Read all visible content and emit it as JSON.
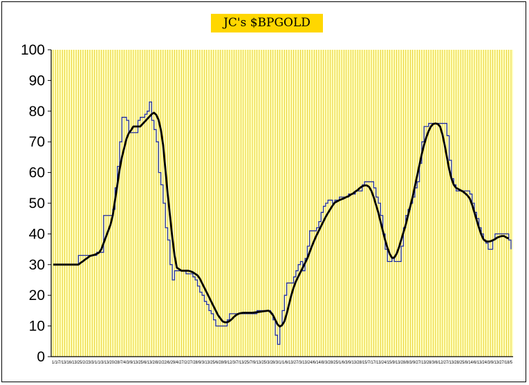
{
  "chart_data": {
    "type": "line",
    "title": "JC's $BPGOLD",
    "xlabel": "",
    "ylabel": "",
    "ylim": [
      0,
      100
    ],
    "yticks": [
      0,
      10,
      20,
      30,
      40,
      50,
      60,
      70,
      80,
      90,
      100
    ],
    "grid": true,
    "legend": "none",
    "colors": {
      "background": "#ffffc0",
      "grid": "#e0c000",
      "series_raw": "#1f2a9e",
      "series_smooth": "#000000",
      "title_bg": "#ffd700"
    },
    "x_tick_labels": [
      "1/1/7/13/16/13/25/2/23/3/1/1/3/13/20/28/7/4/3/9/13/25/6/13/2/8/2/22/6/29/4/27/2/27/28/9/3/13/25/6/28/9/12/3/7/13/25/7/9/13/25/3/28/3/1/1/6/13/27/3/13/24/6/14/8/3/28/25/1/6/3/9/13/28/15/7/17/13/24/15/9/13/28/8/3/9/27/13/28/3/6/12/27/13/28/25/8/14/6/13/24/3/9/13/27/18/5"
    ],
    "series": [
      {
        "values": [
          30,
          30,
          30,
          30,
          30,
          30,
          30,
          30,
          30,
          30,
          30,
          33,
          33,
          33,
          33,
          33,
          33,
          33,
          33,
          34,
          34,
          34,
          46,
          46,
          46,
          46,
          48,
          55,
          62,
          70,
          78,
          78,
          77,
          73,
          73,
          73,
          73,
          77,
          78,
          78,
          79,
          80,
          83,
          77,
          74,
          70,
          60,
          56,
          50,
          42,
          38,
          30,
          25,
          28,
          28,
          28,
          28,
          28,
          27,
          27,
          27,
          26,
          25,
          23,
          21,
          20,
          18,
          17,
          15,
          14,
          12,
          10,
          10,
          10,
          10,
          10,
          12,
          14,
          14,
          14,
          14,
          14,
          14,
          14,
          14,
          14,
          14,
          14,
          14,
          15,
          15,
          15,
          15,
          15,
          15,
          14,
          12,
          7,
          4,
          10,
          15,
          20,
          24,
          24,
          24,
          26,
          28,
          30,
          31,
          28,
          32,
          36,
          41,
          41,
          41,
          42,
          44,
          47,
          49,
          50,
          51,
          51,
          50,
          51,
          51,
          52,
          52,
          52,
          52,
          53,
          53,
          53,
          54,
          54,
          54,
          56,
          57,
          57,
          57,
          57,
          55,
          52,
          50,
          46,
          40,
          35,
          31,
          31,
          32,
          31,
          31,
          31,
          36,
          42,
          46,
          48,
          50,
          52,
          55,
          57,
          63,
          70,
          75,
          75,
          76,
          76,
          76,
          76,
          76,
          76,
          76,
          76,
          72,
          64,
          58,
          56,
          54,
          54,
          54,
          54,
          54,
          54,
          53,
          50,
          47,
          45,
          42,
          40,
          38,
          37,
          35,
          35,
          38,
          40,
          40,
          40,
          40,
          40,
          40,
          38,
          35
        ]
      },
      {
        "values": [
          30,
          30,
          30,
          30,
          30,
          30,
          30,
          30,
          30,
          30,
          30,
          30,
          30.6,
          31.1,
          31.7,
          32.2,
          32.8,
          33,
          33.2,
          33.5,
          33.9,
          35,
          37,
          39,
          41,
          43,
          46,
          51,
          56,
          61,
          65,
          68,
          71,
          72.8,
          73.8,
          75,
          75,
          75,
          75,
          75.8,
          76.6,
          77.4,
          78.2,
          79,
          79.5,
          78.8,
          77.2,
          74,
          69,
          61,
          53,
          46,
          39,
          33,
          29,
          28.5,
          28,
          28,
          28,
          28,
          27.8,
          27.5,
          27,
          26.5,
          25.5,
          24,
          22.5,
          21,
          19.5,
          18,
          16.5,
          15,
          13.5,
          12.5,
          11.5,
          11.2,
          11.2,
          11.6,
          12.2,
          13,
          13.6,
          14,
          14.2,
          14.3,
          14.3,
          14.3,
          14.3,
          14.3,
          14.4,
          14.5,
          14.6,
          14.7,
          14.8,
          14.9,
          15,
          14.5,
          13.5,
          12,
          10.5,
          9.8,
          10.3,
          11.5,
          14,
          17,
          20,
          22.5,
          24.5,
          26,
          27.5,
          29,
          30.5,
          32,
          34,
          36,
          37.8,
          39.5,
          41,
          42.5,
          44,
          45.5,
          46.8,
          48,
          49.2,
          50.2,
          50.6,
          51,
          51.3,
          51.6,
          52,
          52.3,
          52.8,
          53.2,
          53.8,
          54.3,
          55,
          55.5,
          55.8,
          55.8,
          55.3,
          54,
          52,
          49.5,
          47,
          44,
          41,
          38,
          35.5,
          33.5,
          32.2,
          32.3,
          33.5,
          35.5,
          38,
          40.5,
          43,
          46,
          49,
          52,
          55.5,
          59,
          62.5,
          66,
          69,
          71.5,
          73.5,
          75,
          75.8,
          76,
          75.8,
          75,
          72.5,
          69,
          65,
          61,
          58,
          56,
          55,
          54.6,
          54.2,
          53.8,
          53.2,
          52.5,
          51.5,
          49.5,
          47,
          44.5,
          42,
          39.8,
          38.2,
          37.6,
          37.5,
          37.6,
          37.9,
          38.3,
          38.8,
          39.1,
          39.3,
          39.3,
          38.8,
          38.5
        ]
      }
    ]
  }
}
